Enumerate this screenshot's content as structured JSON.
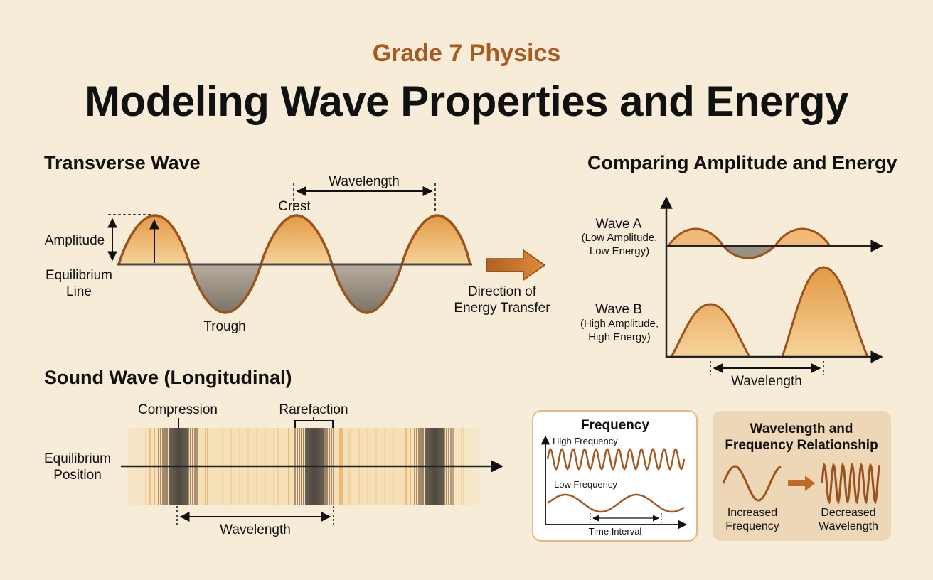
{
  "header": {
    "subtitle": "Grade 7 Physics",
    "title": "Modeling Wave Properties and Energy"
  },
  "transverse": {
    "title": "Transverse Wave",
    "wavelength": "Wavelength",
    "crest": "Crest",
    "amplitude": "Amplitude",
    "equilibrium_line_1": "Equilibrium",
    "equilibrium_line_2": "Line",
    "trough": "Trough",
    "direction_1": "Direction of",
    "direction_2": "Energy Transfer"
  },
  "comparison": {
    "title": "Comparing Amplitude and Energy",
    "wave_a_name": "Wave A",
    "wave_a_desc_1": "(Low Amplitude,",
    "wave_a_desc_2": "Low Energy)",
    "wave_b_name": "Wave B",
    "wave_b_desc_1": "(High Amplitude,",
    "wave_b_desc_2": "High Energy)",
    "wavelength": "Wavelength"
  },
  "sound": {
    "title": "Sound Wave (Longitudinal)",
    "compression": "Compression",
    "rarefaction": "Rarefaction",
    "equilibrium_1": "Equilibrium",
    "equilibrium_2": "Position",
    "wavelength": "Wavelength"
  },
  "frequency_box": {
    "title": "Frequency",
    "high": "High Frequency",
    "low": "Low Frequency",
    "time": "Time Interval"
  },
  "relationship_box": {
    "title_1": "Wavelength and",
    "title_2": "Frequency Relationship",
    "left_1": "Increased",
    "left_2": "Frequency",
    "right_1": "Decreased",
    "right_2": "Wavelength"
  },
  "colors": {
    "background": "#f6ecd8",
    "accent": "#a85a23",
    "wave_stroke": "#9c521d",
    "crest_fill": "#ecad5e",
    "trough_fill": "#8f8579"
  }
}
